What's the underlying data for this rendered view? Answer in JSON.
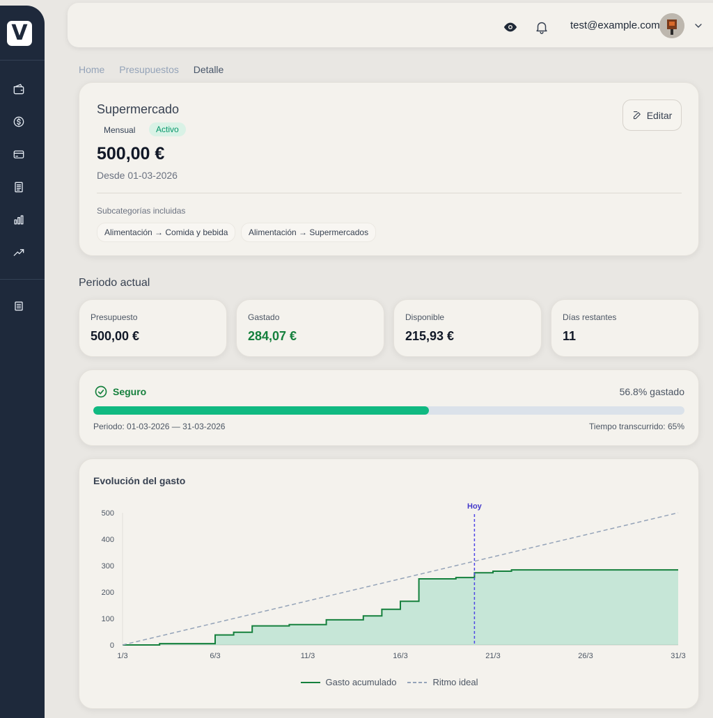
{
  "user": {
    "email": "test@example.com"
  },
  "breadcrumb": [
    "Home",
    "Presupuestos",
    "Detalle"
  ],
  "budget": {
    "name": "Supermercado",
    "period_type": "Mensual",
    "status": "Activo",
    "amount": "500,00 €",
    "since": "Desde 01-03-2026",
    "edit_label": "Editar",
    "subcategories_label": "Subcategorías incluidas",
    "subcategories": [
      "Alimentación → Comida y bebida",
      "Alimentación → Supermercados"
    ]
  },
  "current_period": {
    "title": "Periodo actual",
    "stats": [
      {
        "label": "Presupuesto",
        "value": "500,00 €"
      },
      {
        "label": "Gastado",
        "value": "284,07 €"
      },
      {
        "label": "Disponible",
        "value": "215,93 €"
      },
      {
        "label": "Días restantes",
        "value": "11"
      }
    ],
    "status_label": "Seguro",
    "spent_pct_text": "56.8% gastado",
    "spent_fraction": 0.568,
    "period_text": "Periodo: 01-03-2026 — 31-03-2026",
    "elapsed_text": "Tiempo transcurrido: 65%"
  },
  "colors": {
    "accent_green": "#10b981",
    "ideal_line": "#94a3b8",
    "today_line": "#4f46e5",
    "sidebar": "#1e293b"
  },
  "chart_data": {
    "type": "area",
    "title": "Evolución del gasto",
    "xlabel": "",
    "ylabel": "",
    "x_ticks": [
      "1/3",
      "6/3",
      "11/3",
      "16/3",
      "21/3",
      "26/3",
      "31/3"
    ],
    "y_ticks": [
      0,
      100,
      200,
      300,
      400,
      500
    ],
    "xlim": [
      1,
      31
    ],
    "ylim": [
      0,
      500
    ],
    "today_label": "Hoy",
    "today_x": 20,
    "series": [
      {
        "name": "Gasto acumulado",
        "style": "step-area",
        "x": [
          1,
          3,
          6,
          7,
          8,
          9,
          10,
          11,
          12,
          13,
          14,
          15,
          16,
          17,
          18,
          19,
          20,
          21,
          22,
          23,
          24,
          25,
          26,
          27,
          28,
          29,
          30,
          31
        ],
        "y": [
          0,
          5,
          38,
          48,
          72,
          72,
          77,
          77,
          95,
          95,
          110,
          135,
          165,
          250,
          250,
          255,
          273,
          279,
          284,
          284,
          284,
          284,
          284,
          284,
          284,
          284,
          284,
          284
        ]
      },
      {
        "name": "Ritmo ideal",
        "style": "dashed",
        "x": [
          1,
          31
        ],
        "y": [
          0,
          500
        ]
      }
    ]
  }
}
